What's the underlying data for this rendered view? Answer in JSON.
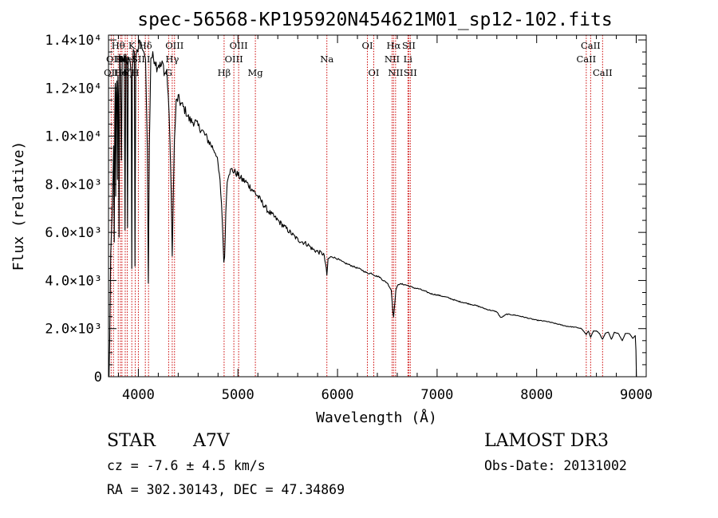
{
  "chart_data": {
    "type": "line",
    "title": "spec-56568-KP195920N454621M01_sp12-102.fits",
    "xlabel": "Wavelength (Å)",
    "ylabel": "Flux (relative)",
    "xlim": [
      3700,
      9100
    ],
    "ylim": [
      0,
      14200
    ],
    "x_ticks": [
      {
        "value": 4000,
        "label": "4000"
      },
      {
        "value": 5000,
        "label": "5000"
      },
      {
        "value": 6000,
        "label": "6000"
      },
      {
        "value": 7000,
        "label": "7000"
      },
      {
        "value": 8000,
        "label": "8000"
      },
      {
        "value": 9000,
        "label": "9000"
      }
    ],
    "y_ticks": [
      {
        "value": 0,
        "label": "0"
      },
      {
        "value": 2000,
        "label": "2.0×10³"
      },
      {
        "value": 4000,
        "label": "4.0×10³"
      },
      {
        "value": 6000,
        "label": "6.0×10³"
      },
      {
        "value": 8000,
        "label": "8.0×10³"
      },
      {
        "value": 10000,
        "label": "1.0×10⁴"
      },
      {
        "value": 12000,
        "label": "1.2×10⁴"
      },
      {
        "value": 14000,
        "label": "1.4×10⁴"
      }
    ],
    "line_color": "#cc0000",
    "series_color": "#000000",
    "spectral_lines": [
      {
        "x": 3727,
        "label": "OII",
        "row": 3
      },
      {
        "x": 3750,
        "label": "OII",
        "row": 2
      },
      {
        "x": 3798,
        "label": "Hθ",
        "row": 1
      },
      {
        "x": 3820,
        "label": "He",
        "row": 3
      },
      {
        "x": 3835,
        "label": "Hη",
        "row": 2
      },
      {
        "x": 3868,
        "label": "Hζ",
        "row": 3
      },
      {
        "x": 3889,
        "label": "HeI",
        "row": 2
      },
      {
        "x": 3934,
        "label": "K",
        "row": 1
      },
      {
        "x": 3969,
        "label": "H",
        "row": 3
      },
      {
        "x": 4000,
        "label": "SII",
        "row": 2
      },
      {
        "x": 4070,
        "label": "Hδ",
        "row": 1
      },
      {
        "x": 4102,
        "label": "I",
        "row": 2
      },
      {
        "x": 4304,
        "label": "G",
        "row": 3
      },
      {
        "x": 4340,
        "label": "Hγ",
        "row": 2
      },
      {
        "x": 4363,
        "label": "OIII",
        "row": 1
      },
      {
        "x": 4861,
        "label": "Hβ",
        "row": 3
      },
      {
        "x": 4959,
        "label": "OIII",
        "row": 2
      },
      {
        "x": 5007,
        "label": "OIII",
        "row": 1
      },
      {
        "x": 5175,
        "label": "Mg",
        "row": 3
      },
      {
        "x": 5893,
        "label": "Na",
        "row": 2
      },
      {
        "x": 6300,
        "label": "OI",
        "row": 1
      },
      {
        "x": 6364,
        "label": "OI",
        "row": 3
      },
      {
        "x": 6548,
        "label": "NII",
        "row": 2
      },
      {
        "x": 6563,
        "label": "Hα",
        "row": 1
      },
      {
        "x": 6583,
        "label": "NII",
        "row": 3
      },
      {
        "x": 6707,
        "label": "Li",
        "row": 2
      },
      {
        "x": 6716,
        "label": "SII",
        "row": 1
      },
      {
        "x": 6731,
        "label": "SII",
        "row": 3
      },
      {
        "x": 8498,
        "label": "CaII",
        "row": 2
      },
      {
        "x": 8542,
        "label": "CaII",
        "row": 1
      },
      {
        "x": 8662,
        "label": "CaII",
        "row": 3
      }
    ],
    "anchors": [
      [
        3705,
        0
      ],
      [
        3712,
        1500
      ],
      [
        3722,
        5100
      ],
      [
        3740,
        7200
      ],
      [
        3752,
        9600
      ],
      [
        3758,
        5600
      ],
      [
        3763,
        10800
      ],
      [
        3768,
        12200
      ],
      [
        3772,
        7500
      ],
      [
        3778,
        11800
      ],
      [
        3784,
        12300
      ],
      [
        3790,
        8200
      ],
      [
        3795,
        12500
      ],
      [
        3800,
        11700
      ],
      [
        3806,
        5800
      ],
      [
        3812,
        13400
      ],
      [
        3822,
        12500
      ],
      [
        3830,
        9000
      ],
      [
        3838,
        13300
      ],
      [
        3848,
        13100
      ],
      [
        3858,
        13400
      ],
      [
        3866,
        6100
      ],
      [
        3874,
        13400
      ],
      [
        3884,
        13000
      ],
      [
        3891,
        6200
      ],
      [
        3898,
        13300
      ],
      [
        3908,
        13200
      ],
      [
        3918,
        13100
      ],
      [
        3928,
        12500
      ],
      [
        3934,
        4500
      ],
      [
        3940,
        12800
      ],
      [
        3950,
        13600
      ],
      [
        3960,
        13500
      ],
      [
        3966,
        4600
      ],
      [
        3974,
        13300
      ],
      [
        3985,
        13600
      ],
      [
        3995,
        13500
      ],
      [
        4010,
        14000
      ],
      [
        4025,
        13900
      ],
      [
        4040,
        13600
      ],
      [
        4055,
        13500
      ],
      [
        4072,
        13200
      ],
      [
        4090,
        9500
      ],
      [
        4100,
        3900
      ],
      [
        4110,
        9500
      ],
      [
        4125,
        13300
      ],
      [
        4145,
        13300
      ],
      [
        4165,
        13200
      ],
      [
        4185,
        12900
      ],
      [
        4205,
        13000
      ],
      [
        4225,
        12900
      ],
      [
        4245,
        13000
      ],
      [
        4265,
        12600
      ],
      [
        4285,
        12700
      ],
      [
        4300,
        11700
      ],
      [
        4318,
        9800
      ],
      [
        4330,
        7500
      ],
      [
        4340,
        5000
      ],
      [
        4350,
        7500
      ],
      [
        4362,
        9800
      ],
      [
        4380,
        11400
      ],
      [
        4400,
        11600
      ],
      [
        4420,
        11400
      ],
      [
        4450,
        11200
      ],
      [
        4480,
        11000
      ],
      [
        4510,
        10700
      ],
      [
        4540,
        10600
      ],
      [
        4570,
        10600
      ],
      [
        4600,
        10400
      ],
      [
        4630,
        10300
      ],
      [
        4660,
        10100
      ],
      [
        4690,
        9900
      ],
      [
        4720,
        9700
      ],
      [
        4750,
        9500
      ],
      [
        4780,
        9300
      ],
      [
        4800,
        8800
      ],
      [
        4820,
        8100
      ],
      [
        4835,
        7200
      ],
      [
        4848,
        6000
      ],
      [
        4858,
        4700
      ],
      [
        4866,
        5000
      ],
      [
        4878,
        6800
      ],
      [
        4892,
        8200
      ],
      [
        4910,
        8500
      ],
      [
        4940,
        8600
      ],
      [
        4970,
        8500
      ],
      [
        5000,
        8400
      ],
      [
        5040,
        8200
      ],
      [
        5080,
        8100
      ],
      [
        5120,
        7900
      ],
      [
        5160,
        7700
      ],
      [
        5200,
        7500
      ],
      [
        5250,
        7200
      ],
      [
        5300,
        6900
      ],
      [
        5350,
        6700
      ],
      [
        5400,
        6500
      ],
      [
        5450,
        6300
      ],
      [
        5500,
        6100
      ],
      [
        5550,
        5900
      ],
      [
        5600,
        5700
      ],
      [
        5650,
        5600
      ],
      [
        5700,
        5500
      ],
      [
        5750,
        5300
      ],
      [
        5800,
        5200
      ],
      [
        5860,
        5100
      ],
      [
        5880,
        4700
      ],
      [
        5893,
        4200
      ],
      [
        5905,
        4900
      ],
      [
        5940,
        5000
      ],
      [
        6000,
        4900
      ],
      [
        6060,
        4750
      ],
      [
        6120,
        4650
      ],
      [
        6180,
        4550
      ],
      [
        6240,
        4450
      ],
      [
        6300,
        4300
      ],
      [
        6340,
        4300
      ],
      [
        6380,
        4200
      ],
      [
        6420,
        4150
      ],
      [
        6460,
        4000
      ],
      [
        6500,
        3900
      ],
      [
        6540,
        3600
      ],
      [
        6556,
        2700
      ],
      [
        6563,
        2500
      ],
      [
        6570,
        2800
      ],
      [
        6586,
        3600
      ],
      [
        6610,
        3850
      ],
      [
        6650,
        3850
      ],
      [
        6700,
        3800
      ],
      [
        6760,
        3700
      ],
      [
        6820,
        3650
      ],
      [
        6880,
        3550
      ],
      [
        6940,
        3450
      ],
      [
        7000,
        3400
      ],
      [
        7100,
        3300
      ],
      [
        7200,
        3150
      ],
      [
        7300,
        3050
      ],
      [
        7400,
        2950
      ],
      [
        7500,
        2800
      ],
      [
        7600,
        2700
      ],
      [
        7640,
        2450
      ],
      [
        7700,
        2600
      ],
      [
        7800,
        2550
      ],
      [
        7900,
        2450
      ],
      [
        8000,
        2350
      ],
      [
        8100,
        2300
      ],
      [
        8200,
        2200
      ],
      [
        8300,
        2100
      ],
      [
        8400,
        2050
      ],
      [
        8450,
        2000
      ],
      [
        8498,
        1750
      ],
      [
        8520,
        1900
      ],
      [
        8542,
        1650
      ],
      [
        8570,
        1900
      ],
      [
        8600,
        1900
      ],
      [
        8630,
        1800
      ],
      [
        8662,
        1550
      ],
      [
        8690,
        1800
      ],
      [
        8720,
        1850
      ],
      [
        8750,
        1550
      ],
      [
        8780,
        1850
      ],
      [
        8820,
        1800
      ],
      [
        8860,
        1500
      ],
      [
        8890,
        1800
      ],
      [
        8930,
        1800
      ],
      [
        8965,
        1600
      ],
      [
        8990,
        1700
      ],
      [
        8997,
        1100
      ],
      [
        9002,
        0
      ]
    ]
  },
  "info": {
    "object_type": "STAR",
    "spectral_class": "A7V",
    "cz": "cz = -7.6 ± 4.5 km/s",
    "coords": "RA = 302.30143, DEC =  47.34869",
    "survey": "LAMOST DR3",
    "obs_date": "Obs-Date: 20131002"
  }
}
